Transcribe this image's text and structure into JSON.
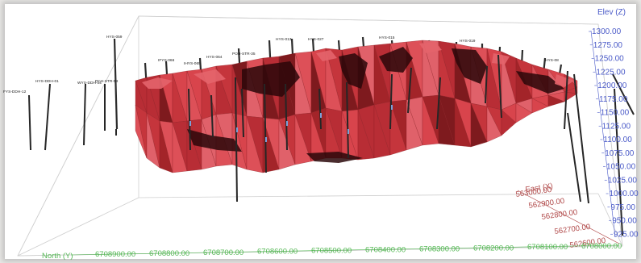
{
  "axes": {
    "elevation": {
      "title": "Elev (Z)",
      "ticks": [
        "1300.00",
        "1275.00",
        "1250.00",
        "1225.00",
        "1200.00",
        "1175.00",
        "1150.00",
        "1125.00",
        "1100.00",
        "1075.00",
        "1050.00",
        "1025.00",
        "1000.00",
        "975.00",
        "950.00",
        "925.00"
      ]
    },
    "east": {
      "title": "East (X)",
      "ticks": [
        "563000.00",
        "562900.00",
        "562800.00",
        "562700.00",
        "562600.00"
      ]
    },
    "north": {
      "title": "North (Y)",
      "ticks": [
        "6708900.00",
        "6708800.00",
        "6708700.00",
        "6708600.00",
        "6708500.00",
        "6708400.00",
        "6708300.00",
        "6708200.00",
        "6708100.00",
        "6708000.00"
      ]
    }
  },
  "drillholes": [
    "FYS-DDH-12",
    "HYS-DDH-01",
    "WYS-DDH-04",
    "PCH-STR-58",
    "IFYS-066",
    "IHYS-065",
    "HYS-064",
    "POH-STR-35",
    "HYS-013",
    "HYS-027",
    "HYS-015",
    "HYS-019",
    "HYS-08",
    "HYS-059"
  ],
  "colors": {
    "surface_main": "#c5353c",
    "surface_light": "#dd5058",
    "surface_dark": "#7e1a1e",
    "surface_shadow": "#2a0709",
    "elevation_axis": "#4a5ac8",
    "east_axis": "#b04848",
    "north_axis": "#54b854"
  }
}
